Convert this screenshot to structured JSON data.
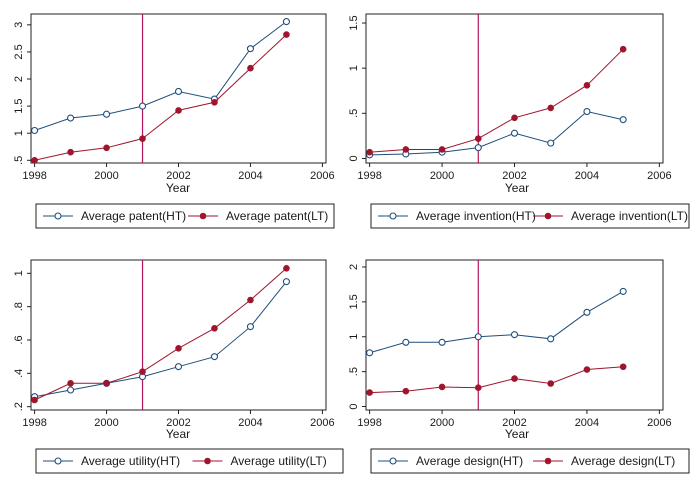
{
  "colors": {
    "background": "#ffffff",
    "panel_border": "#222222",
    "ht_series": "#1f4e79",
    "lt_series": "#a0152d",
    "reference_line": "#b4145a"
  },
  "chart_data": [
    {
      "type": "line",
      "xlabel": "Year",
      "ylabel": "",
      "xticks": [
        1998,
        2000,
        2002,
        2004,
        2006
      ],
      "yticks": [
        0.5,
        1,
        1.5,
        2,
        2.5,
        3
      ],
      "ytick_labels": [
        ".5",
        "1",
        "1.5",
        "2",
        "2.5",
        "3"
      ],
      "xlim": [
        1997.9,
        2006.1
      ],
      "ylim": [
        0.45,
        3.2
      ],
      "vline_x": 2001,
      "x": [
        1998,
        1999,
        2000,
        2001,
        2002,
        2003,
        2004,
        2005
      ],
      "series": [
        {
          "name": "Average patent(HT)",
          "marker": "hollow-circle",
          "values": [
            1.05,
            1.28,
            1.35,
            1.5,
            1.77,
            1.63,
            2.56,
            3.06
          ]
        },
        {
          "name": "Average patent(LT)",
          "marker": "solid-circle",
          "values": [
            0.5,
            0.65,
            0.73,
            0.9,
            1.42,
            1.57,
            2.2,
            2.82
          ]
        }
      ]
    },
    {
      "type": "line",
      "xlabel": "Year",
      "ylabel": "",
      "xticks": [
        1998,
        2000,
        2002,
        2004,
        2006
      ],
      "yticks": [
        0,
        0.5,
        1,
        1.5
      ],
      "ytick_labels": [
        "0",
        ".5",
        "1",
        "1.5"
      ],
      "xlim": [
        1997.9,
        2006.1
      ],
      "ylim": [
        -0.05,
        1.6
      ],
      "vline_x": 2001,
      "x": [
        1998,
        1999,
        2000,
        2001,
        2002,
        2003,
        2004,
        2005
      ],
      "series": [
        {
          "name": "Average invention(HT)",
          "marker": "hollow-circle",
          "values": [
            0.04,
            0.05,
            0.07,
            0.12,
            0.28,
            0.17,
            0.52,
            0.43
          ]
        },
        {
          "name": "Average invention(LT)",
          "marker": "solid-circle",
          "values": [
            0.07,
            0.1,
            0.1,
            0.22,
            0.45,
            0.56,
            0.81,
            1.21
          ]
        }
      ]
    },
    {
      "type": "line",
      "xlabel": "Year",
      "ylabel": "",
      "xticks": [
        1998,
        2000,
        2002,
        2004,
        2006
      ],
      "yticks": [
        0.2,
        0.4,
        0.6,
        0.8,
        1
      ],
      "ytick_labels": [
        ".2",
        ".4",
        ".6",
        ".8",
        "1"
      ],
      "xlim": [
        1997.9,
        2006.1
      ],
      "ylim": [
        0.18,
        1.08
      ],
      "vline_x": 2001,
      "x": [
        1998,
        1999,
        2000,
        2001,
        2002,
        2003,
        2004,
        2005
      ],
      "series": [
        {
          "name": "Average utility(HT)",
          "marker": "hollow-circle",
          "values": [
            0.26,
            0.3,
            0.34,
            0.38,
            0.44,
            0.5,
            0.68,
            0.95
          ]
        },
        {
          "name": "Average utility(LT)",
          "marker": "solid-circle",
          "values": [
            0.24,
            0.34,
            0.34,
            0.41,
            0.55,
            0.67,
            0.84,
            1.03
          ]
        }
      ]
    },
    {
      "type": "line",
      "xlabel": "Year",
      "ylabel": "",
      "xticks": [
        1998,
        2000,
        2002,
        2004,
        2006
      ],
      "yticks": [
        0,
        0.5,
        1,
        1.5,
        2
      ],
      "ytick_labels": [
        "0",
        ".5",
        "1",
        "1.5",
        "2"
      ],
      "xlim": [
        1997.9,
        2006.1
      ],
      "ylim": [
        -0.05,
        2.1
      ],
      "vline_x": 2001,
      "x": [
        1998,
        1999,
        2000,
        2001,
        2002,
        2003,
        2004,
        2005
      ],
      "series": [
        {
          "name": "Average design(HT)",
          "marker": "hollow-circle",
          "values": [
            0.77,
            0.92,
            0.92,
            1.0,
            1.03,
            0.97,
            1.35,
            1.65
          ]
        },
        {
          "name": "Average design(LT)",
          "marker": "solid-circle",
          "values": [
            0.2,
            0.22,
            0.28,
            0.27,
            0.4,
            0.33,
            0.53,
            0.57
          ]
        }
      ]
    }
  ]
}
